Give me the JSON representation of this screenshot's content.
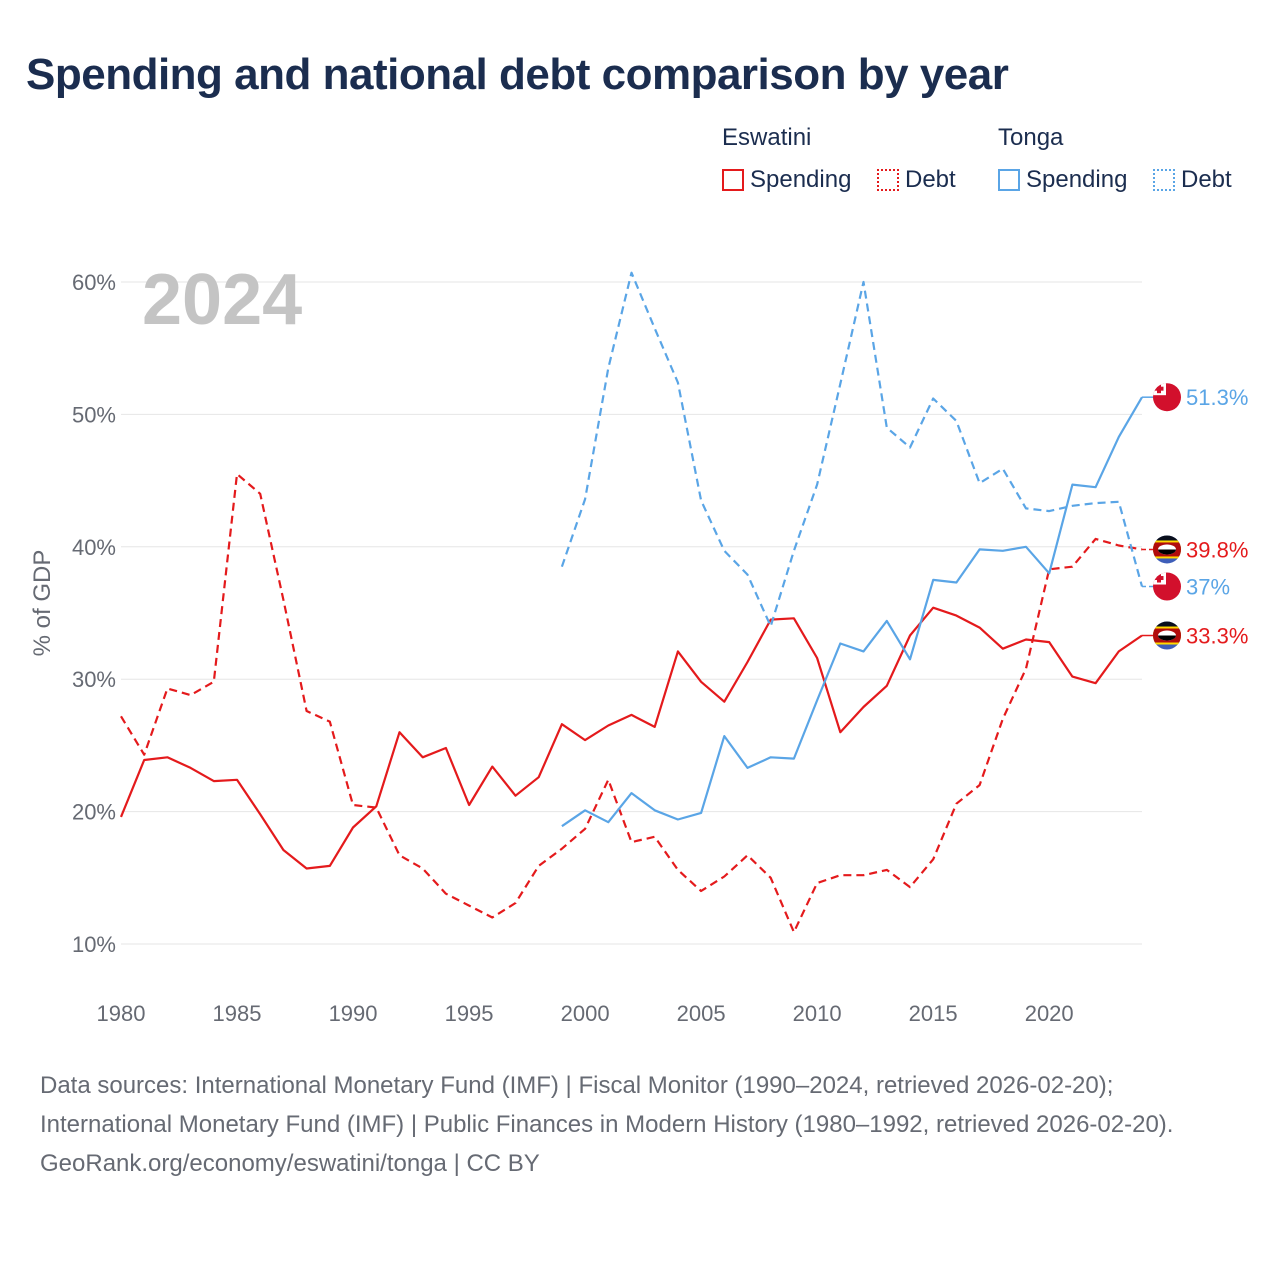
{
  "title": "Spending and national debt comparison by year",
  "legend": {
    "groups": [
      {
        "name": "Eswatini",
        "items": [
          "Spending",
          "Debt"
        ],
        "color": "#e41a1c"
      },
      {
        "name": "Tonga",
        "items": [
          "Spending",
          "Debt"
        ],
        "color": "#5aa5e6"
      }
    ]
  },
  "year_watermark": "2024",
  "footer": {
    "sources": "Data sources: International Monetary Fund (IMF) | Fiscal Monitor (1990–2024, retrieved 2026-02-20); International Monetary Fund (IMF) | Public Finances in Modern History (1980–1992, retrieved 2026-02-20).",
    "credit": "GeoRank.org/economy/eswatini/tonga | CC BY"
  },
  "chart_data": {
    "type": "line",
    "title": "Spending and national debt comparison by year",
    "xlabel": "",
    "ylabel": "% of GDP",
    "xlim": [
      1980,
      2024
    ],
    "ylim": [
      10,
      60
    ],
    "x_ticks": [
      1980,
      1985,
      1990,
      1995,
      2000,
      2005,
      2010,
      2015,
      2020
    ],
    "y_ticks": [
      10,
      20,
      30,
      40,
      50,
      60
    ],
    "y_tick_labels": [
      "10%",
      "20%",
      "30%",
      "40%",
      "50%",
      "60%"
    ],
    "grid": true,
    "series": [
      {
        "name": "Eswatini Spending",
        "country": "Eswatini",
        "metric": "Spending",
        "color": "#e41a1c",
        "dash": "solid",
        "x": [
          1980,
          1981,
          1982,
          1983,
          1984,
          1985,
          1986,
          1987,
          1988,
          1989,
          1990,
          1991,
          1992,
          1993,
          1994,
          1995,
          1996,
          1997,
          1998,
          1999,
          2000,
          2001,
          2002,
          2003,
          2004,
          2005,
          2006,
          2007,
          2008,
          2009,
          2010,
          2011,
          2012,
          2013,
          2014,
          2015,
          2016,
          2017,
          2018,
          2019,
          2020,
          2021,
          2022,
          2023,
          2024
        ],
        "values": [
          19.6,
          23.9,
          24.1,
          23.3,
          22.3,
          22.4,
          19.8,
          17.1,
          15.7,
          15.9,
          18.8,
          20.4,
          26.0,
          24.1,
          24.8,
          20.5,
          23.4,
          21.2,
          22.6,
          26.6,
          25.4,
          26.5,
          27.3,
          26.4,
          32.1,
          29.8,
          28.3,
          31.3,
          34.5,
          34.6,
          31.6,
          26.0,
          27.9,
          29.5,
          33.3,
          35.4,
          34.8,
          33.9,
          32.3,
          33.0,
          32.8,
          30.2,
          29.7,
          32.1,
          33.3
        ],
        "end_label": "33.3%"
      },
      {
        "name": "Eswatini Debt",
        "country": "Eswatini",
        "metric": "Debt",
        "color": "#e41a1c",
        "dash": "dashed",
        "x": [
          1980,
          1981,
          1982,
          1983,
          1984,
          1985,
          1986,
          1987,
          1988,
          1989,
          1990,
          1991,
          1992,
          1993,
          1994,
          1995,
          1996,
          1997,
          1998,
          1999,
          2000,
          2001,
          2002,
          2003,
          2004,
          2005,
          2006,
          2007,
          2008,
          2009,
          2010,
          2011,
          2012,
          2013,
          2014,
          2015,
          2016,
          2017,
          2018,
          2019,
          2020,
          2021,
          2022,
          2023,
          2024
        ],
        "values": [
          27.2,
          24.3,
          29.3,
          28.8,
          29.8,
          45.5,
          44.0,
          36.0,
          27.6,
          26.8,
          20.5,
          20.3,
          16.7,
          15.7,
          13.8,
          12.9,
          12.0,
          13.1,
          15.9,
          17.2,
          18.7,
          22.4,
          17.7,
          18.1,
          15.6,
          14.0,
          15.1,
          16.7,
          15.0,
          10.9,
          14.6,
          15.2,
          15.2,
          15.6,
          14.3,
          16.4,
          20.6,
          22.0,
          27.0,
          30.8,
          38.3,
          38.5,
          40.6,
          40.1,
          39.8
        ],
        "end_label": "39.8%"
      },
      {
        "name": "Tonga Spending",
        "country": "Tonga",
        "metric": "Spending",
        "color": "#5aa5e6",
        "dash": "solid",
        "x": [
          1999,
          2000,
          2001,
          2002,
          2003,
          2004,
          2005,
          2006,
          2007,
          2008,
          2009,
          2010,
          2011,
          2012,
          2013,
          2014,
          2015,
          2016,
          2017,
          2018,
          2019,
          2020,
          2021,
          2022,
          2023,
          2024
        ],
        "values": [
          18.9,
          20.1,
          19.2,
          21.4,
          20.1,
          19.4,
          19.9,
          25.7,
          23.3,
          24.1,
          24.0,
          28.4,
          32.7,
          32.1,
          34.4,
          31.5,
          37.5,
          37.3,
          39.8,
          39.7,
          40.0,
          38.0,
          44.7,
          44.5,
          48.3,
          51.3
        ],
        "end_label": "51.3%"
      },
      {
        "name": "Tonga Debt",
        "country": "Tonga",
        "metric": "Debt",
        "color": "#5aa5e6",
        "dash": "dashed",
        "x": [
          1999,
          2000,
          2001,
          2002,
          2003,
          2004,
          2005,
          2006,
          2007,
          2008,
          2009,
          2010,
          2011,
          2012,
          2013,
          2014,
          2015,
          2016,
          2017,
          2018,
          2019,
          2020,
          2021,
          2022,
          2023,
          2024
        ],
        "values": [
          38.5,
          43.6,
          53.5,
          60.7,
          56.5,
          52.4,
          43.5,
          39.7,
          37.9,
          34.0,
          39.7,
          44.7,
          52.3,
          60.0,
          49.0,
          47.5,
          51.2,
          49.5,
          44.8,
          45.9,
          42.9,
          42.7,
          43.1,
          43.3,
          43.4,
          37.0
        ],
        "end_label": "37%"
      }
    ]
  }
}
